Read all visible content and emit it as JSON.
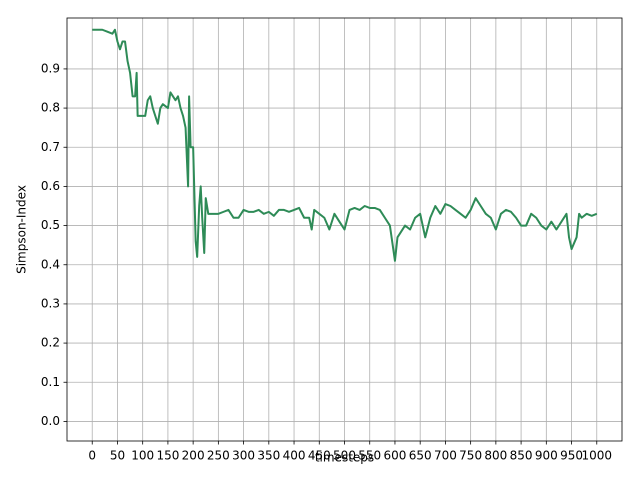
{
  "chart_data": {
    "type": "line",
    "xlabel": "timesteps",
    "ylabel": "Simpson-Index",
    "x": [
      0,
      10,
      20,
      30,
      40,
      45,
      50,
      55,
      60,
      65,
      70,
      75,
      80,
      85,
      88,
      90,
      100,
      105,
      110,
      115,
      120,
      125,
      130,
      135,
      140,
      150,
      155,
      160,
      165,
      170,
      175,
      180,
      185,
      190,
      192,
      195,
      200,
      205,
      208,
      212,
      215,
      218,
      222,
      225,
      230,
      240,
      250,
      260,
      270,
      280,
      290,
      300,
      310,
      320,
      330,
      340,
      350,
      360,
      370,
      380,
      390,
      400,
      410,
      420,
      430,
      435,
      440,
      450,
      460,
      470,
      480,
      490,
      500,
      510,
      520,
      530,
      540,
      550,
      560,
      570,
      580,
      590,
      600,
      605,
      610,
      620,
      630,
      640,
      650,
      660,
      670,
      680,
      690,
      700,
      710,
      720,
      730,
      740,
      750,
      760,
      770,
      780,
      790,
      800,
      810,
      820,
      830,
      840,
      850,
      860,
      870,
      880,
      890,
      900,
      910,
      920,
      930,
      940,
      945,
      950,
      960,
      965,
      970,
      980,
      990,
      1000
    ],
    "series": [
      {
        "name": "Simpson-Index",
        "color": "#2e8b57",
        "values": [
          1.0,
          1.0,
          1.0,
          0.995,
          0.99,
          1.0,
          0.97,
          0.95,
          0.97,
          0.97,
          0.92,
          0.89,
          0.83,
          0.83,
          0.89,
          0.78,
          0.78,
          0.78,
          0.82,
          0.83,
          0.8,
          0.78,
          0.76,
          0.8,
          0.81,
          0.8,
          0.84,
          0.83,
          0.82,
          0.83,
          0.8,
          0.78,
          0.75,
          0.6,
          0.83,
          0.7,
          0.7,
          0.46,
          0.42,
          0.55,
          0.6,
          0.52,
          0.43,
          0.57,
          0.53,
          0.53,
          0.53,
          0.535,
          0.54,
          0.52,
          0.52,
          0.54,
          0.535,
          0.535,
          0.54,
          0.53,
          0.535,
          0.525,
          0.54,
          0.54,
          0.535,
          0.54,
          0.545,
          0.52,
          0.52,
          0.49,
          0.54,
          0.53,
          0.52,
          0.49,
          0.53,
          0.51,
          0.49,
          0.54,
          0.545,
          0.54,
          0.55,
          0.545,
          0.545,
          0.54,
          0.52,
          0.5,
          0.41,
          0.47,
          0.48,
          0.5,
          0.49,
          0.52,
          0.53,
          0.47,
          0.52,
          0.55,
          0.53,
          0.555,
          0.55,
          0.54,
          0.53,
          0.52,
          0.54,
          0.57,
          0.55,
          0.53,
          0.52,
          0.49,
          0.53,
          0.54,
          0.535,
          0.52,
          0.5,
          0.5,
          0.53,
          0.52,
          0.5,
          0.49,
          0.51,
          0.49,
          0.51,
          0.53,
          0.47,
          0.44,
          0.47,
          0.53,
          0.52,
          0.53,
          0.525,
          0.53
        ]
      }
    ],
    "xlim": [
      -50,
      1050
    ],
    "ylim": [
      -0.05,
      1.03
    ],
    "xticks": [
      0,
      50,
      100,
      150,
      200,
      250,
      300,
      350,
      400,
      450,
      500,
      550,
      600,
      650,
      700,
      750,
      800,
      850,
      900,
      950,
      1000
    ],
    "yticks": [
      0.0,
      0.1,
      0.2,
      0.3,
      0.4,
      0.5,
      0.6,
      0.7,
      0.8,
      0.9
    ],
    "grid": true
  }
}
